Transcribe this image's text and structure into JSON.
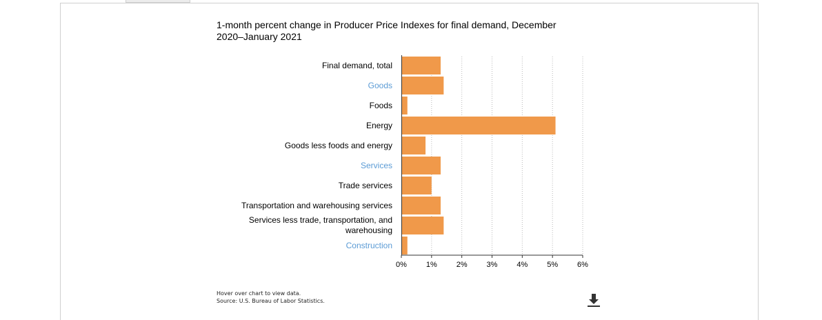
{
  "chart_data": {
    "type": "bar",
    "orientation": "horizontal",
    "title": "1-month percent change in Producer Price Indexes for final demand, December 2020–January 2021",
    "categories": [
      "Final demand, total",
      "Goods",
      "Foods",
      "Energy",
      "Goods less foods and energy",
      "Services",
      "Trade services",
      "Transportation and warehousing services",
      "Services less trade, transportation, and warehousing",
      "Construction"
    ],
    "category_is_link": [
      false,
      true,
      false,
      false,
      false,
      true,
      false,
      false,
      false,
      true
    ],
    "values": [
      1.3,
      1.4,
      0.2,
      5.1,
      0.8,
      1.3,
      1.0,
      1.3,
      1.4,
      0.2
    ],
    "xlim": [
      0,
      6
    ],
    "x_ticks": [
      0,
      1,
      2,
      3,
      4,
      5,
      6
    ],
    "x_tick_labels": [
      "0%",
      "1%",
      "2%",
      "3%",
      "4%",
      "5%",
      "6%"
    ],
    "xlabel": "",
    "ylabel": "",
    "grid": "vertical-dotted",
    "bar_color": "#f0994a",
    "link_color": "#5b9bd5"
  },
  "notes": {
    "hover": "Hover over chart to view data.",
    "source": "Source: U.S. Bureau of Labor Statistics."
  },
  "download_icon": "download-icon"
}
